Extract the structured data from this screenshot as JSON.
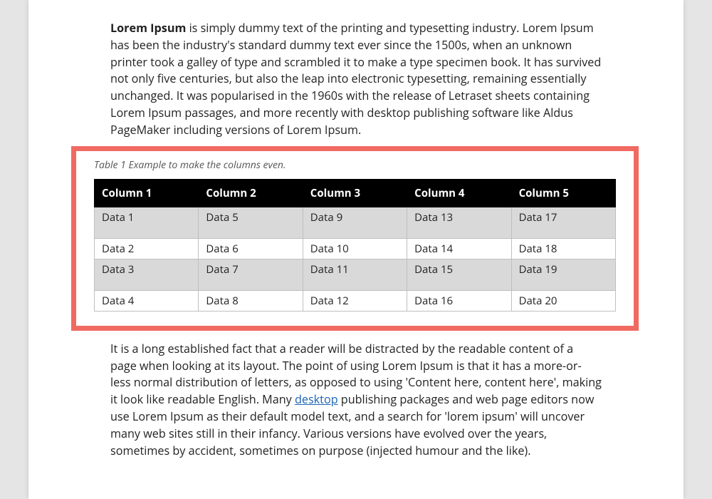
{
  "paragraph1": {
    "lead": "Lorem Ipsum",
    "rest": " is simply dummy text of the printing and typesetting industry. Lorem Ipsum has been the industry's standard dummy text ever since the 1500s, when an unknown printer took a galley of type and scrambled it to make a type specimen book. It has survived not only five centuries, but also the leap into electronic typesetting, remaining essentially unchanged. It was popularised in the 1960s with the release of Letraset sheets containing Lorem Ipsum passages, and more recently with desktop publishing software like Aldus PageMaker including versions of Lorem Ipsum."
  },
  "table": {
    "caption": "Table 1 Example to make the columns even.",
    "highlight_border_color": "#f06a62",
    "header_bg": "#000000",
    "header_fg": "#ffffff",
    "band_bg": "#d9d9d9",
    "border_color": "#bfbfbf",
    "columns": [
      "Column 1",
      "Column 2",
      "Column 3",
      "Column 4",
      "Column 5"
    ],
    "rows": [
      {
        "cells": [
          "Data 1",
          "Data 5",
          "Data 9",
          "Data 13",
          "Data 17"
        ],
        "band": true,
        "tall": true
      },
      {
        "cells": [
          "Data 2",
          "Data 6",
          "Data 10",
          "Data 14",
          "Data 18"
        ],
        "band": false,
        "tall": false
      },
      {
        "cells": [
          "Data 3",
          "Data 7",
          "Data 11",
          "Data 15",
          "Data 19"
        ],
        "band": true,
        "tall": true
      },
      {
        "cells": [
          "Data 4",
          "Data 8",
          "Data 12",
          "Data 16",
          "Data 20"
        ],
        "band": false,
        "tall": false
      }
    ]
  },
  "paragraph2": {
    "pre": "It is a long established fact that a reader will be distracted by the readable content of a page when looking at its layout. The point of using Lorem Ipsum is that it has a more-or-less normal distribution of letters, as opposed to using 'Content here, content here', making it look like readable English. Many ",
    "link": "desktop",
    "post": " publishing packages and web page editors now use Lorem Ipsum as their default model text, and a search for 'lorem ipsum' will uncover many web sites still in their infancy. Various versions have evolved over the years, sometimes by accident, sometimes on purpose (injected humour and the like)."
  },
  "colors": {
    "page_bg": "#ffffff",
    "desk_bg": "#e5e5e5",
    "text": "#222222",
    "link": "#1a63b5"
  }
}
